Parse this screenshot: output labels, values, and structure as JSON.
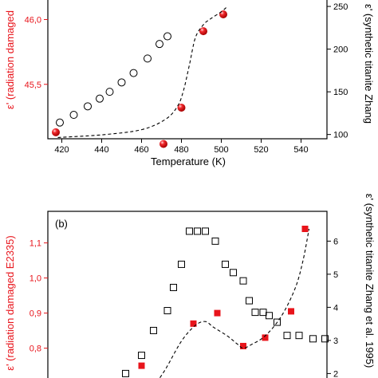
{
  "chart_data": [
    {
      "type": "scatter",
      "panel_label": "",
      "xlabel": "Temperature (K)",
      "ylabel_left": "ε' (radiation damaged",
      "ylabel_right": "ε' (synthetic titanite Zhang",
      "xlim": [
        413,
        553
      ],
      "ylim_left": [
        45.08,
        46.2
      ],
      "ylim_right": [
        95,
        265
      ],
      "x_ticks": [
        420,
        440,
        460,
        480,
        500,
        520,
        540
      ],
      "y_ticks_left": [
        "46,0",
        "45,5"
      ],
      "y_ticks_right": [
        250,
        200,
        150,
        100
      ],
      "colors": {
        "left_axis": "#e8141b",
        "right_axis": "#000000",
        "marker": "#e8141b"
      },
      "series": [
        {
          "axis": "left",
          "marker": "red-sphere",
          "x": [
            417,
            471,
            480,
            491,
            501
          ],
          "y": [
            45.13,
            45.04,
            45.32,
            45.91,
            46.04
          ]
        },
        {
          "axis": "right",
          "marker": "open-circle",
          "x": [
            419,
            426,
            433,
            439,
            444,
            450,
            456,
            463,
            469,
            473
          ],
          "y": [
            114,
            123,
            133,
            142,
            150,
            161,
            172,
            189,
            206,
            215
          ]
        },
        {
          "axis": "left",
          "marker": "dashed-line",
          "x": [
            418,
            440,
            460,
            472,
            478,
            481,
            484,
            487,
            491,
            495,
            500,
            503
          ],
          "y": [
            45.09,
            45.11,
            45.15,
            45.23,
            45.33,
            45.45,
            45.65,
            45.86,
            45.96,
            46.01,
            46.06,
            46.1
          ]
        }
      ]
    },
    {
      "type": "scatter",
      "panel_label": "(b)",
      "xlabel": "",
      "ylabel_left": "ε' (radiation damaged E2335)",
      "ylabel_right": "ε' (synthetic titanite Zhang et al. 1995)",
      "xlim": [
        413,
        553
      ],
      "ylim_left": [
        0.69,
        1.19
      ],
      "ylim_right": [
        1.6,
        6.9
      ],
      "y_ticks_left": [
        "1,1",
        "1,0",
        "0,9",
        "0,8"
      ],
      "y_ticks_right": [
        6,
        5,
        4,
        3,
        2
      ],
      "colors": {
        "left_axis": "#e8141b",
        "right_axis": "#000000",
        "marker": "#e8141b"
      },
      "series": [
        {
          "axis": "left",
          "marker": "red-square",
          "x": [
            460,
            486,
            498,
            511,
            522,
            535,
            542
          ],
          "y": [
            0.75,
            0.87,
            0.9,
            0.806,
            0.83,
            0.905,
            1.14
          ]
        },
        {
          "axis": "right",
          "marker": "open-square",
          "x": [
            452,
            460,
            466,
            473,
            476,
            480,
            484,
            488,
            492,
            497,
            502,
            506,
            511,
            514,
            517,
            521,
            524,
            528,
            533,
            539,
            546,
            552
          ],
          "y": [
            2.0,
            2.55,
            3.3,
            3.9,
            4.6,
            5.3,
            6.3,
            6.3,
            6.3,
            6.0,
            5.3,
            5.05,
            4.8,
            4.2,
            3.85,
            3.85,
            3.75,
            3.55,
            3.15,
            3.15,
            3.05,
            3.05
          ]
        },
        {
          "axis": "left",
          "marker": "dashed-line",
          "x": [
            466,
            472,
            480,
            487,
            492,
            496,
            503,
            508,
            511,
            515,
            522,
            530,
            537,
            541,
            544
          ],
          "y": [
            0.69,
            0.74,
            0.82,
            0.865,
            0.876,
            0.86,
            0.835,
            0.812,
            0.8,
            0.81,
            0.835,
            0.89,
            0.97,
            1.05,
            1.14
          ]
        }
      ]
    }
  ]
}
